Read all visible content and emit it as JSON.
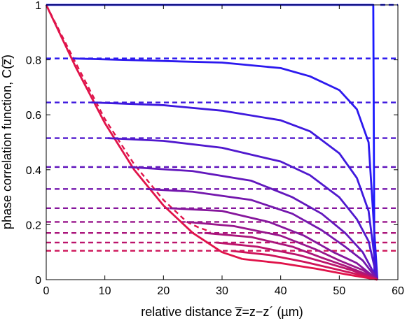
{
  "chart_data": {
    "type": "line",
    "title": "",
    "xlabel": "relative distance z̅=z−z´ (µm)",
    "ylabel": "phase correlation function, C(z̅)",
    "xlim": [
      0,
      60
    ],
    "ylim": [
      0,
      1
    ],
    "x_ticks": [
      0,
      10,
      20,
      30,
      40,
      50,
      60
    ],
    "y_ticks": [
      0,
      0.2,
      0.4,
      0.6,
      0.8,
      1
    ],
    "x_tick_labels": [
      "0",
      "10",
      "20",
      "30",
      "40",
      "50",
      "60"
    ],
    "y_tick_labels": [
      "0",
      "0.2",
      "0.4",
      "0.6",
      "0.8",
      "1"
    ],
    "grid": false,
    "legend": "none",
    "color_start": "#1a1aff",
    "color_end": "#e0134a",
    "envelope": {
      "x": [
        0,
        5,
        10,
        15,
        20,
        25,
        30,
        33.5
      ],
      "y": [
        1.0,
        0.775,
        0.57,
        0.4,
        0.27,
        0.17,
        0.1,
        0.075
      ]
    },
    "series": [
      {
        "plateau": 1.0,
        "end_x": 56.0,
        "solid": [
          [
            0,
            1.0
          ],
          [
            55.8,
            1.0
          ],
          [
            56.0,
            0.0
          ]
        ],
        "dashed_x": [
          57,
          60
        ]
      },
      {
        "plateau": 0.805,
        "end_x": 56.5,
        "solid": [
          [
            4.5,
            0.805
          ],
          [
            30,
            0.79
          ],
          [
            40,
            0.77
          ],
          [
            45,
            0.74
          ],
          [
            50,
            0.69
          ],
          [
            53,
            0.62
          ],
          [
            55,
            0.5
          ],
          [
            56.5,
            0.0
          ]
        ],
        "dashed_x": [
          0,
          60
        ]
      },
      {
        "plateau": 0.645,
        "end_x": 56.5,
        "solid": [
          [
            7.7,
            0.645
          ],
          [
            20,
            0.635
          ],
          [
            30,
            0.615
          ],
          [
            40,
            0.58
          ],
          [
            45,
            0.54
          ],
          [
            50,
            0.46
          ],
          [
            53,
            0.37
          ],
          [
            55,
            0.25
          ],
          [
            56.5,
            0.0
          ]
        ],
        "dashed_x": [
          0,
          60
        ]
      },
      {
        "plateau": 0.515,
        "end_x": 56.5,
        "solid": [
          [
            10.5,
            0.515
          ],
          [
            20,
            0.505
          ],
          [
            30,
            0.48
          ],
          [
            40,
            0.43
          ],
          [
            45,
            0.38
          ],
          [
            50,
            0.3
          ],
          [
            53,
            0.22
          ],
          [
            55,
            0.14
          ],
          [
            56.5,
            0.0
          ]
        ],
        "dashed_x": [
          0,
          60
        ]
      },
      {
        "plateau": 0.41,
        "end_x": 56.5,
        "solid": [
          [
            14,
            0.41
          ],
          [
            25,
            0.395
          ],
          [
            35,
            0.36
          ],
          [
            42,
            0.3
          ],
          [
            47,
            0.24
          ],
          [
            51,
            0.17
          ],
          [
            54,
            0.1
          ],
          [
            56.5,
            0.0
          ]
        ],
        "dashed_x": [
          0,
          60
        ]
      },
      {
        "plateau": 0.33,
        "end_x": 56.5,
        "solid": [
          [
            17,
            0.33
          ],
          [
            25,
            0.32
          ],
          [
            35,
            0.29
          ],
          [
            42,
            0.24
          ],
          [
            47,
            0.18
          ],
          [
            51,
            0.12
          ],
          [
            54,
            0.07
          ],
          [
            56.5,
            0.0
          ]
        ],
        "dashed_x": [
          0,
          60
        ]
      },
      {
        "plateau": 0.26,
        "end_x": 56.5,
        "solid": [
          [
            21,
            0.26
          ],
          [
            30,
            0.25
          ],
          [
            38,
            0.21
          ],
          [
            44,
            0.16
          ],
          [
            49,
            0.1
          ],
          [
            53,
            0.06
          ],
          [
            56.5,
            0.0
          ]
        ],
        "dashed_x": [
          0,
          60
        ]
      },
      {
        "plateau": 0.21,
        "end_x": 56.5,
        "solid": [
          [
            24,
            0.21
          ],
          [
            32,
            0.195
          ],
          [
            40,
            0.16
          ],
          [
            46,
            0.11
          ],
          [
            50,
            0.07
          ],
          [
            54,
            0.035
          ],
          [
            56.5,
            0.0
          ]
        ],
        "dashed_x": [
          0,
          60
        ]
      },
      {
        "plateau": 0.17,
        "end_x": 56.5,
        "solid": [
          [
            27,
            0.17
          ],
          [
            35,
            0.155
          ],
          [
            42,
            0.12
          ],
          [
            47,
            0.08
          ],
          [
            51,
            0.05
          ],
          [
            54,
            0.025
          ],
          [
            56.5,
            0.0
          ]
        ],
        "dashed_x": [
          0,
          60
        ]
      },
      {
        "plateau": 0.135,
        "end_x": 56.5,
        "solid": [
          [
            29,
            0.135
          ],
          [
            36,
            0.12
          ],
          [
            43,
            0.09
          ],
          [
            48,
            0.06
          ],
          [
            52,
            0.035
          ],
          [
            56.5,
            0.0
          ]
        ],
        "dashed_x": [
          0,
          60
        ]
      },
      {
        "plateau": 0.105,
        "end_x": 56.5,
        "solid": [
          [
            31.5,
            0.105
          ],
          [
            38,
            0.09
          ],
          [
            44,
            0.065
          ],
          [
            49,
            0.04
          ],
          [
            53,
            0.02
          ],
          [
            56.5,
            0.0
          ]
        ],
        "dashed_x": [
          0,
          60
        ]
      },
      {
        "plateau": 0.075,
        "end_x": 56.5,
        "solid": [
          [
            33.5,
            0.075
          ],
          [
            40,
            0.06
          ],
          [
            46,
            0.04
          ],
          [
            51,
            0.02
          ],
          [
            56.5,
            0.0
          ]
        ],
        "dashed_x": []
      }
    ],
    "dashed_envelope": {
      "x": [
        0,
        5,
        10,
        15,
        20,
        24,
        26,
        28
      ],
      "y": [
        1.0,
        0.79,
        0.585,
        0.42,
        0.29,
        0.21,
        0.19,
        0.175
      ]
    }
  }
}
